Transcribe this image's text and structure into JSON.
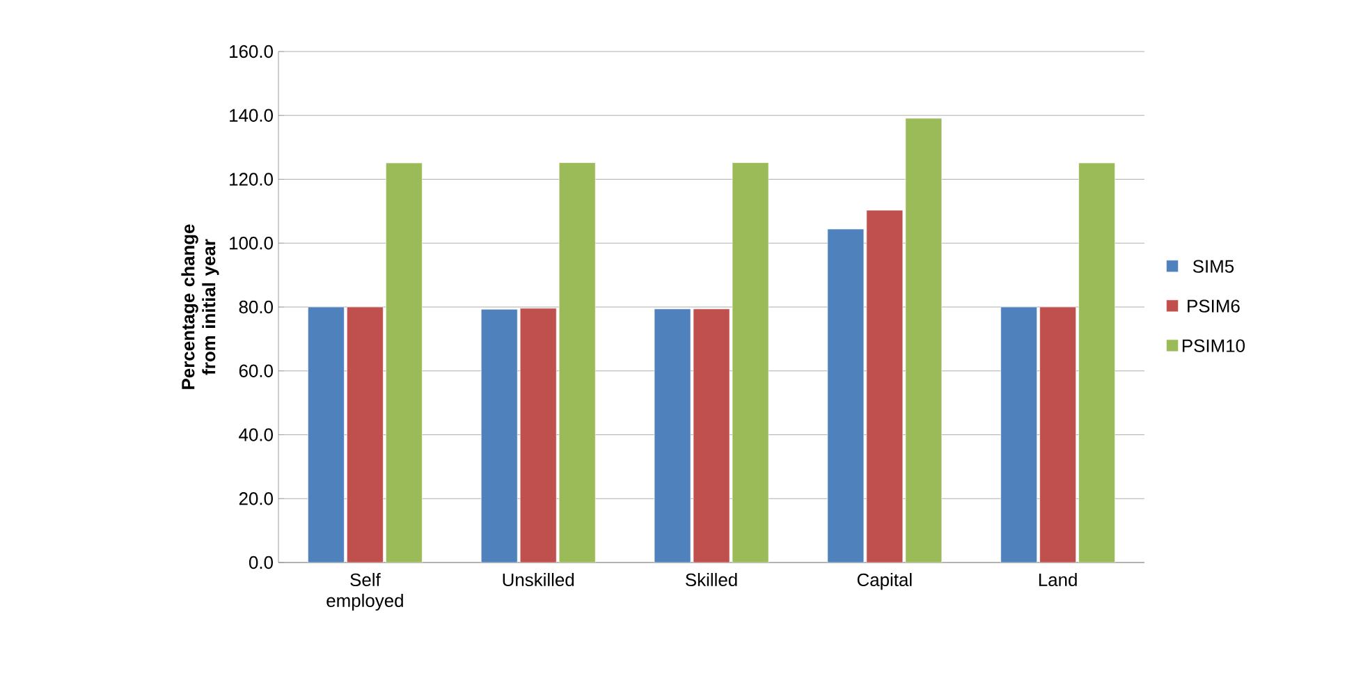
{
  "chart_data": {
    "type": "bar",
    "ylabel": "Percentage change from initial year",
    "categories": [
      "Self employed",
      "Unskilled",
      "Skilled",
      "Capital",
      "Land"
    ],
    "series": [
      {
        "name": "SIM5",
        "color": "#4f81bd",
        "values": [
          80.0,
          79.3,
          79.4,
          104.4,
          80.0
        ]
      },
      {
        "name": "PSIM6",
        "color": "#c0504d",
        "values": [
          80.0,
          79.6,
          79.4,
          110.3,
          80.0
        ]
      },
      {
        "name": "PSIM10",
        "color": "#9bbb59",
        "values": [
          125.1,
          125.2,
          125.2,
          139.1,
          125.1
        ]
      }
    ],
    "ylim": [
      0,
      160
    ],
    "yticks": [
      {
        "value": 0,
        "label": "0.0"
      },
      {
        "value": 20,
        "label": "20.0"
      },
      {
        "value": 40,
        "label": "40.0"
      },
      {
        "value": 60,
        "label": "60.0"
      },
      {
        "value": 80,
        "label": "80.0"
      },
      {
        "value": 100,
        "label": "100.0"
      },
      {
        "value": 120,
        "label": "120.0"
      },
      {
        "value": 140,
        "label": "140.0"
      },
      {
        "value": 160,
        "label": "160.0"
      }
    ],
    "grid": "y",
    "legend": "right"
  }
}
